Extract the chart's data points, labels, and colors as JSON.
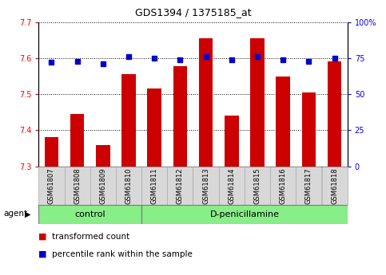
{
  "title": "GDS1394 / 1375185_at",
  "categories": [
    "GSM61807",
    "GSM61808",
    "GSM61809",
    "GSM61810",
    "GSM61811",
    "GSM61812",
    "GSM61813",
    "GSM61814",
    "GSM61815",
    "GSM61816",
    "GSM61817",
    "GSM61818"
  ],
  "bar_values": [
    7.38,
    7.445,
    7.36,
    7.555,
    7.515,
    7.578,
    7.655,
    7.44,
    7.655,
    7.548,
    7.505,
    7.59
  ],
  "percentile_values": [
    72,
    73,
    71,
    76,
    75,
    74,
    76,
    74,
    76,
    74,
    73,
    75
  ],
  "bar_color": "#cc0000",
  "percentile_color": "#0000cc",
  "ylim_left": [
    7.3,
    7.7
  ],
  "ylim_right": [
    0,
    100
  ],
  "yticks_left": [
    7.3,
    7.4,
    7.5,
    7.6,
    7.7
  ],
  "yticks_right": [
    0,
    25,
    50,
    75,
    100
  ],
  "ytick_labels_right": [
    "0",
    "25",
    "50",
    "75",
    "100%"
  ],
  "n_control": 4,
  "n_treat": 8,
  "control_label": "control",
  "treatment_label": "D-penicillamine",
  "agent_label": "agent",
  "legend_bar_label": "transformed count",
  "legend_dot_label": "percentile rank within the sample",
  "group_bg_color": "#88ee88",
  "tick_label_bg": "#d8d8d8",
  "bar_bottom": 7.3,
  "title_fontsize": 9,
  "tick_fontsize": 7,
  "label_fontsize": 7.5
}
